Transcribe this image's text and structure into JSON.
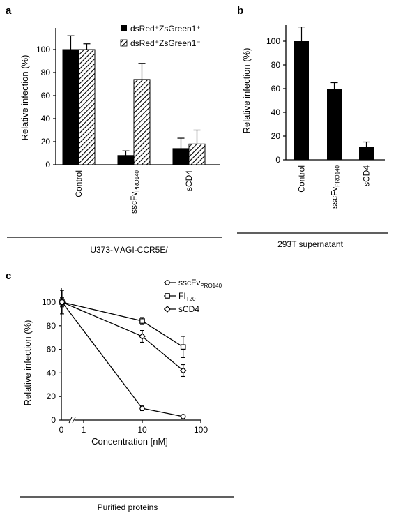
{
  "chart_data": [
    {
      "panel": "a",
      "type": "bar",
      "categories": [
        "Control",
        "sscFvPRO140",
        "sCD4"
      ],
      "category_labels": [
        {
          "main": "Control",
          "sub": ""
        },
        {
          "main": "sscFv",
          "sub": "PRO140"
        },
        {
          "main": "sCD4",
          "sub": ""
        }
      ],
      "series": [
        {
          "name": "dsRed⁺ZsGreen1⁺",
          "values": [
            100,
            8,
            14
          ],
          "errors": [
            12,
            4,
            9
          ],
          "fill": "solid"
        },
        {
          "name": "dsRed⁺ZsGreen1⁻",
          "values": [
            100,
            74,
            18
          ],
          "errors": [
            5,
            14,
            12
          ],
          "fill": "hatched"
        }
      ],
      "ylabel": "Relative infection (%)",
      "ylim": [
        0,
        120
      ],
      "yticks": [
        0,
        20,
        40,
        60,
        80,
        100
      ],
      "legend_position": "top-right",
      "group_label": "U373-MAGI-CCR5E/"
    },
    {
      "panel": "b",
      "type": "bar",
      "categories": [
        "Control",
        "sscFvPRO140",
        "sCD4"
      ],
      "category_labels": [
        {
          "main": "Control",
          "sub": ""
        },
        {
          "main": "sscFv",
          "sub": "PRO140"
        },
        {
          "main": "sCD4",
          "sub": ""
        }
      ],
      "series": [
        {
          "name": "",
          "values": [
            100,
            60,
            11
          ],
          "errors": [
            12,
            5,
            4
          ],
          "fill": "solid"
        }
      ],
      "ylabel": "Relative infection (%)",
      "ylim": [
        0,
        115
      ],
      "yticks": [
        0,
        20,
        40,
        60,
        80,
        100
      ],
      "group_label": "293T supernatant"
    },
    {
      "panel": "c",
      "type": "line",
      "x_scale": "log with broken axis (0 shown)",
      "xticks": [
        "0",
        "1",
        "10",
        "100"
      ],
      "x": [
        0,
        10,
        50
      ],
      "series": [
        {
          "name": "sscFvPRO140",
          "name_main": "sscFv",
          "name_sub": "PRO140",
          "marker": "circle",
          "values": [
            100,
            10,
            3
          ],
          "errors": [
            10,
            2,
            1
          ]
        },
        {
          "name": "FIT20",
          "name_main": "FI",
          "name_sub": "T20",
          "marker": "square",
          "values": [
            100,
            84,
            62
          ],
          "errors": [
            4,
            3,
            9
          ]
        },
        {
          "name": "sCD4",
          "name_main": "sCD4",
          "name_sub": "",
          "marker": "diamond",
          "values": [
            100,
            71,
            42
          ],
          "errors": [
            3,
            5,
            5
          ]
        }
      ],
      "xlabel": "Concentration [nM]",
      "ylabel": "Relative infection (%)",
      "ylim": [
        0,
        110
      ],
      "yticks": [
        0,
        20,
        40,
        60,
        80,
        100
      ],
      "legend_position": "top-right",
      "group_label": "Purified proteins"
    }
  ]
}
